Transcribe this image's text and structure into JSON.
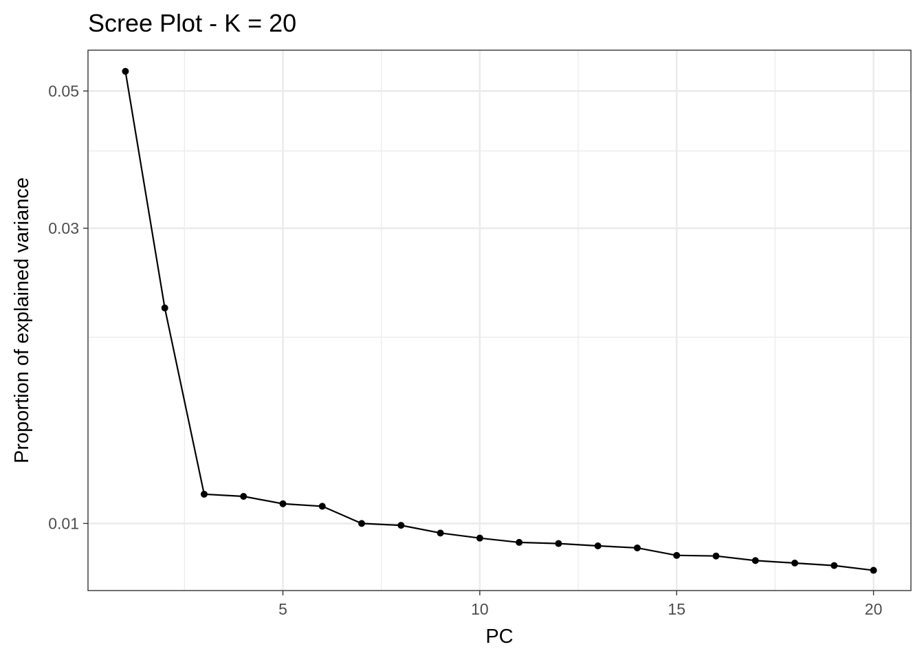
{
  "chart_data": {
    "type": "line",
    "title": "Scree Plot - K = 20",
    "xlabel": "PC",
    "ylabel": "Proportion of explained variance",
    "y_scale": "log10",
    "x": [
      1,
      2,
      3,
      4,
      5,
      6,
      7,
      8,
      9,
      10,
      11,
      12,
      13,
      14,
      15,
      16,
      17,
      18,
      19,
      20
    ],
    "series": [
      {
        "values": [
          0.0538,
          0.0223,
          0.01115,
          0.01106,
          0.01076,
          0.01066,
          0.01,
          0.00993,
          0.00965,
          0.00947,
          0.00932,
          0.00928,
          0.0092,
          0.00913,
          0.00888,
          0.00886,
          0.00871,
          0.00863,
          0.00855,
          0.0084
        ],
        "color": "#000000"
      }
    ],
    "xlim": [
      0.05,
      20.95
    ],
    "ylim": [
      0.00779,
      0.0582
    ],
    "x_ticks": [
      5,
      10,
      15,
      20
    ],
    "x_tick_labels": [
      "5",
      "10",
      "15",
      "20"
    ],
    "x_minor_ticks": [
      2.5,
      7.5,
      12.5,
      17.5
    ],
    "y_ticks": [
      0.01,
      0.03,
      0.05
    ],
    "y_tick_labels": [
      "0.01",
      "0.03",
      "0.05"
    ],
    "y_minor_ticks": [
      0.02,
      0.04
    ],
    "grid": true,
    "legend": "none"
  }
}
